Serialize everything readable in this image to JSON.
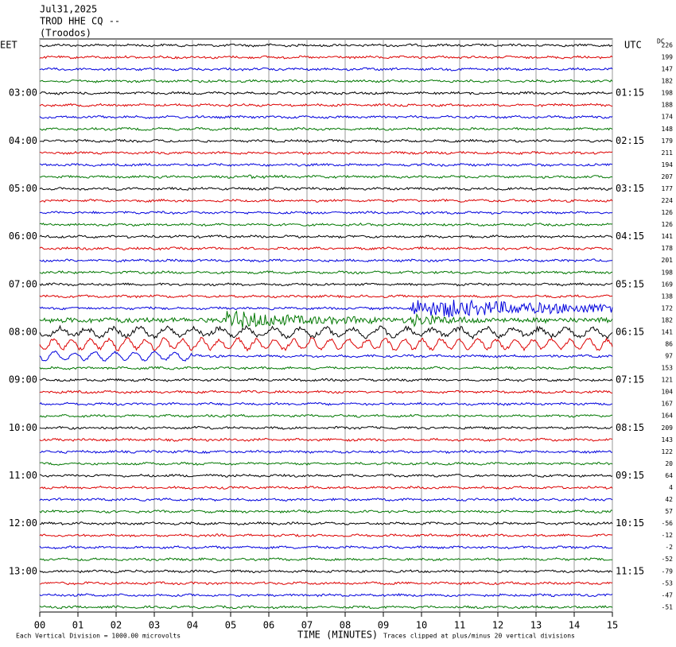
{
  "header": {
    "date": "Jul31,2025",
    "station": "TROD HHE CQ --",
    "location": "(Troodos)"
  },
  "left_zone": "EET",
  "right_zone": "UTC",
  "dc_heading": "DC",
  "left_labels": [
    "03:00",
    "04:00",
    "05:00",
    "06:00",
    "07:00",
    "08:00",
    "09:00",
    "10:00",
    "11:00",
    "12:00",
    "13:00"
  ],
  "right_labels": [
    "01:15",
    "02:15",
    "03:15",
    "04:15",
    "05:15",
    "06:15",
    "07:15",
    "08:15",
    "09:15",
    "10:15",
    "11:15"
  ],
  "dc_values": [
    226,
    199,
    147,
    182,
    198,
    188,
    174,
    148,
    179,
    211,
    194,
    207,
    177,
    224,
    126,
    126,
    141,
    178,
    201,
    198,
    169,
    138,
    172,
    182,
    141,
    86,
    97,
    153,
    121,
    104,
    167,
    164,
    209,
    143,
    122,
    20,
    64,
    4,
    42,
    57,
    -56,
    -12,
    -2,
    -52,
    -79,
    -53,
    -47,
    -51
  ],
  "time_ticks": [
    "00",
    "01",
    "02",
    "03",
    "04",
    "05",
    "06",
    "07",
    "08",
    "09",
    "10",
    "11",
    "12",
    "13",
    "14",
    "15"
  ],
  "x_axis_label": "TIME (MINUTES)",
  "footer": {
    "scale": "Each Vertical Division = 1000.00 microvolts",
    "clip": "Traces clipped at plus/minus 20 vertical divisions"
  }
}
